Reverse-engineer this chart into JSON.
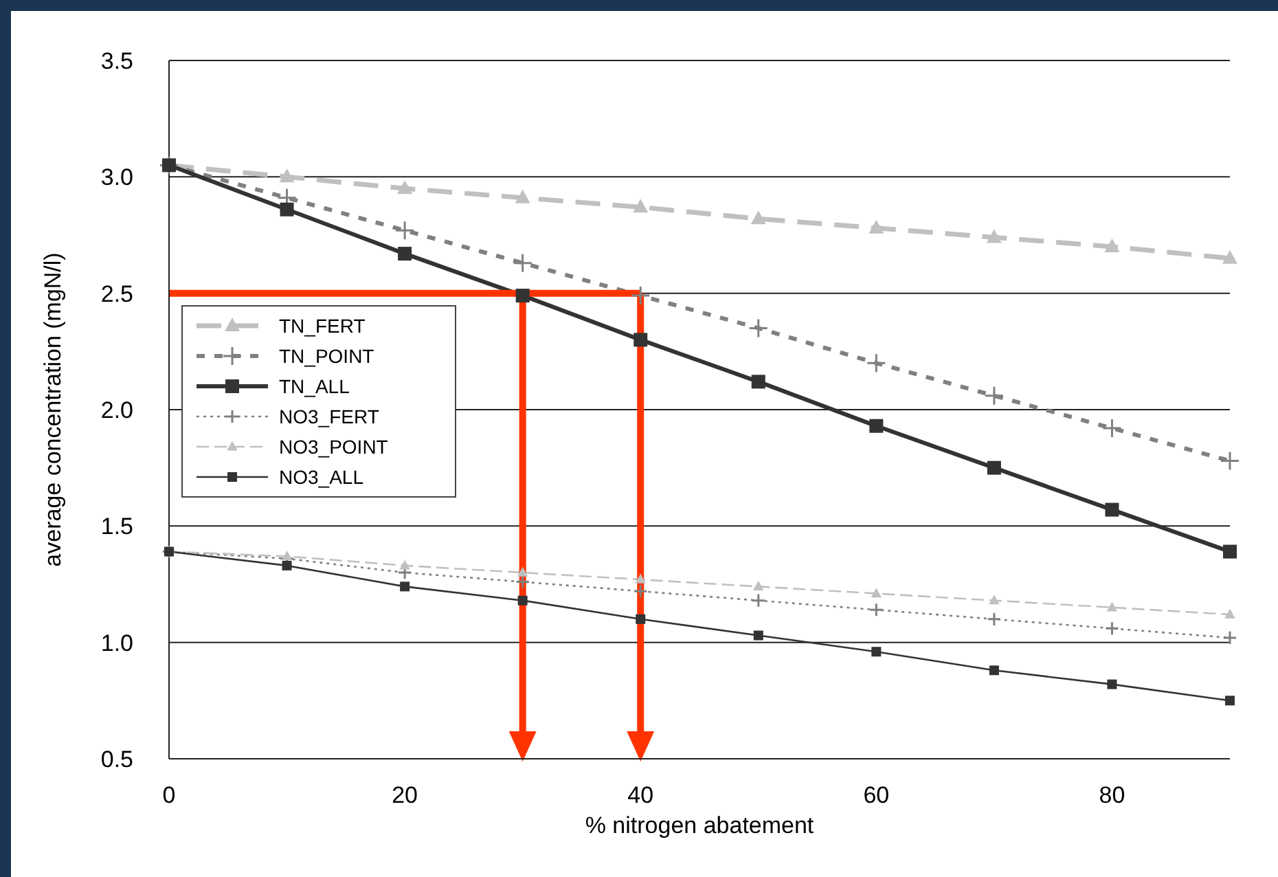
{
  "chart_data": {
    "type": "line",
    "xlabel": "% nitrogen abatement",
    "ylabel": "average concentration (mgN/l)",
    "x": [
      0,
      10,
      20,
      30,
      40,
      50,
      60,
      70,
      80,
      90
    ],
    "xlim": [
      0,
      90
    ],
    "xticks": [
      0,
      20,
      40,
      60,
      80
    ],
    "ylim": [
      0.5,
      3.5
    ],
    "yticks": [
      0.5,
      {
        "value": 1,
        "label": "1.0"
      },
      1.5,
      {
        "value": 2,
        "label": "2.0"
      },
      2.5,
      {
        "value": 3,
        "label": "3.0"
      },
      3.5
    ],
    "grid": "y",
    "legend": "left",
    "series": [
      {
        "name": "TN_FERT",
        "color": "#c0c0c0",
        "marker": "triangle",
        "line_style": "dashed",
        "values": [
          3.05,
          3.0,
          2.95,
          2.91,
          2.87,
          2.82,
          2.78,
          2.74,
          2.7,
          2.65
        ]
      },
      {
        "name": "TN_POINT",
        "color": "#808080",
        "marker": "cross",
        "line_style": "dashed",
        "values": [
          3.05,
          2.91,
          2.77,
          2.63,
          2.49,
          2.35,
          2.2,
          2.06,
          1.92,
          1.78
        ]
      },
      {
        "name": "TN_ALL",
        "color": "#333333",
        "marker": "square",
        "line_style": "solid",
        "values": [
          3.05,
          2.86,
          2.67,
          2.49,
          2.3,
          2.12,
          1.93,
          1.75,
          1.57,
          1.39
        ]
      },
      {
        "name": "NO3_FERT",
        "color": "#808080",
        "marker": "cross",
        "line_style": "dotted",
        "values": [
          1.39,
          1.36,
          1.3,
          1.26,
          1.22,
          1.18,
          1.14,
          1.1,
          1.06,
          1.02
        ]
      },
      {
        "name": "NO3_POINT",
        "color": "#c0c0c0",
        "marker": "triangle",
        "line_style": "dashed",
        "values": [
          1.39,
          1.37,
          1.33,
          1.3,
          1.27,
          1.24,
          1.21,
          1.18,
          1.15,
          1.12
        ]
      },
      {
        "name": "NO3_ALL",
        "color": "#333333",
        "marker": "square",
        "line_style": "solid",
        "values": [
          1.39,
          1.33,
          1.24,
          1.18,
          1.1,
          1.03,
          0.96,
          0.88,
          0.82,
          0.75
        ]
      }
    ],
    "ref_lines": [
      {
        "axis": "y",
        "value": 2.5,
        "color": "#ff3300"
      },
      {
        "axis": "x",
        "value": 30,
        "color": "#ff3300"
      },
      {
        "axis": "x",
        "value": 40,
        "color": "#ff3300"
      }
    ]
  }
}
